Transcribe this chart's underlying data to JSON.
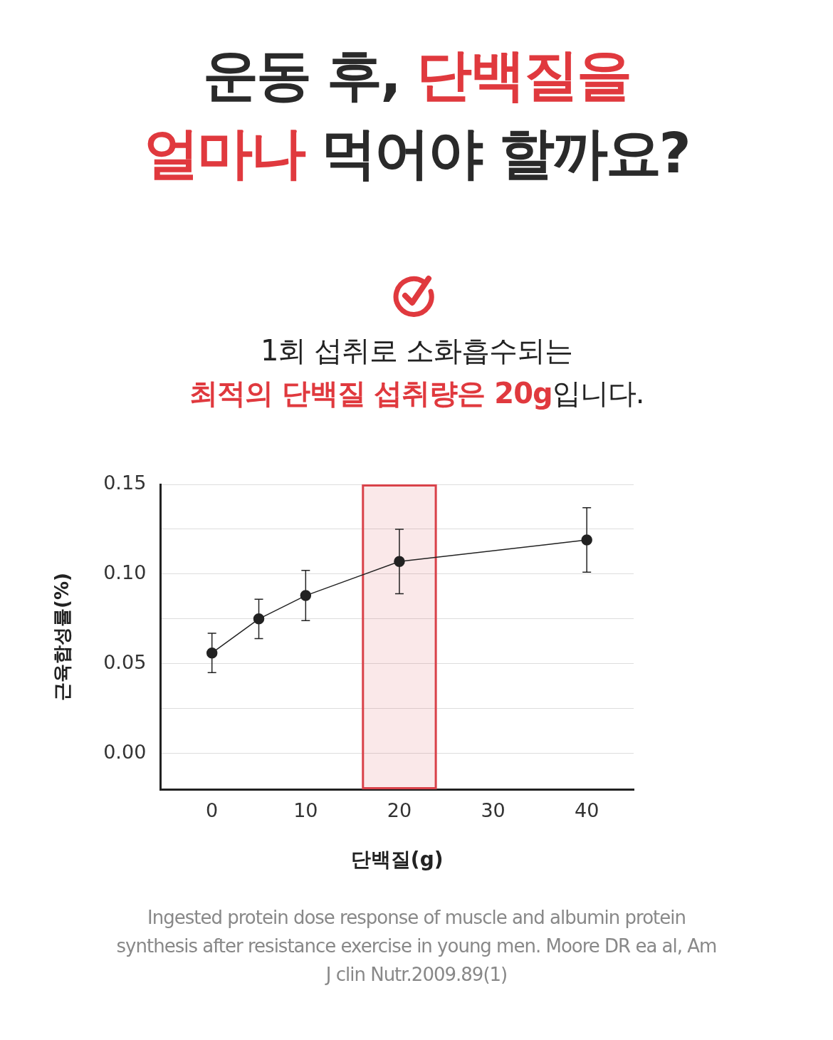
{
  "chart_data": {
    "type": "line",
    "title": "운동 후, 단백질을\n얼마나 먹어야 할까요?",
    "subtitle": "1회 섭취로 소화흡수되는\n최적의 단백질 섭취량은 20g입니다.",
    "xlabel": "단백질(g)",
    "ylabel": "근육합성률(%)",
    "x": [
      0,
      5,
      10,
      20,
      40
    ],
    "series": [
      {
        "color": "#222222",
        "values": [
          0.056,
          0.075,
          0.088,
          0.107,
          0.119
        ],
        "errors": [
          0.011,
          0.011,
          0.014,
          0.018,
          0.018
        ]
      }
    ],
    "xlim": [
      -5.5,
      45
    ],
    "xticks": [
      0,
      10,
      20,
      30,
      40
    ],
    "ylim": [
      -0.02,
      0.15
    ],
    "yticks": [
      {
        "value": 0,
        "label": "0.00"
      },
      {
        "value": 0.025,
        "label": null
      },
      0.05,
      {
        "value": 0.075,
        "label": null
      },
      {
        "value": 0.1,
        "label": "0.10"
      },
      {
        "value": 0.125,
        "label": null
      },
      0.15
    ],
    "bands": [
      {
        "axis": "x",
        "from": 16,
        "to": 24,
        "color": "#d9424a"
      }
    ],
    "grid": "y",
    "legend": false,
    "marker": "circle",
    "line_style": "solid",
    "annotations": [
      "Ingested protein dose response of muscle and albumin protein synthesis after resistance exercise in young men. Moore DR ea al, Am J clin Nutr.2009.89(1)"
    ]
  }
}
